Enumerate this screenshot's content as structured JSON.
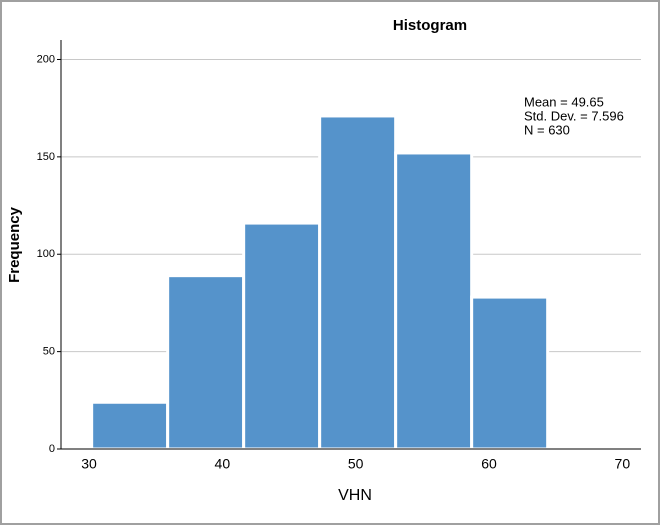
{
  "chart_data": {
    "type": "histogram",
    "title": "Histogram",
    "xlabel": "VHN",
    "ylabel": "Frequency",
    "bins": [
      30.2,
      35.9,
      41.6,
      47.3,
      53.0,
      58.7,
      64.4
    ],
    "values": [
      24,
      89,
      116,
      171,
      152,
      78
    ],
    "color": "#5593cb",
    "xlim": [
      27.9,
      71.4
    ],
    "xticks": [
      30,
      40,
      50,
      60,
      70
    ],
    "ylim": [
      0,
      210
    ],
    "yticks": [
      0,
      50,
      100,
      150,
      200
    ],
    "grid": true,
    "annotations": [
      "Mean = 49.65",
      "Std. Dev. = 7.596",
      "N = 630"
    ]
  }
}
